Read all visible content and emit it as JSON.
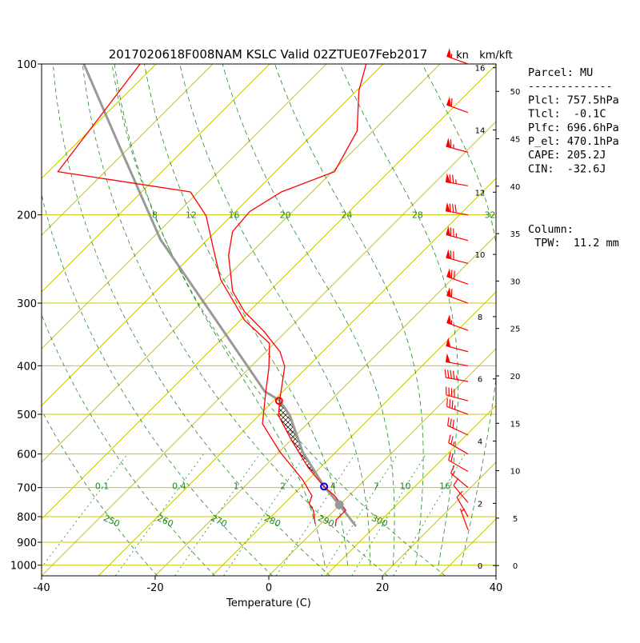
{
  "chart_data": {
    "type": "skewt",
    "title": "2017020618F008NAM KSLC Valid 02ZTUE07Feb2017",
    "xlabel": "Temperature (C)",
    "xlim": [
      -40,
      40
    ],
    "xticks": [
      -40,
      -20,
      0,
      20,
      40
    ],
    "ylim": [
      1050,
      100
    ],
    "yticks": [
      100,
      200,
      300,
      400,
      500,
      600,
      700,
      800,
      900,
      1000
    ],
    "log_y": true,
    "skew": 45,
    "isotherms": [
      -110,
      -100,
      -90,
      -80,
      -70,
      -60,
      -50,
      -40,
      -30,
      -20,
      -10,
      0,
      10,
      20,
      30,
      40
    ],
    "dry_adiabats": [
      250,
      260,
      270,
      280,
      290,
      300
    ],
    "mixing_ratios": [
      0.1,
      0.4,
      1,
      2,
      4,
      7,
      10,
      16
    ],
    "moist_adiabats": [
      8,
      12,
      16,
      20,
      24,
      28,
      32
    ],
    "temperature": {
      "color": "#ff0000",
      "pressure": [
        836,
        812,
        777,
        727,
        695,
        639,
        562,
        503,
        469,
        434,
        401,
        375,
        342,
        312,
        284,
        241,
        216,
        197,
        180,
        164,
        136,
        113,
        100
      ],
      "values": [
        3.0,
        2.0,
        2.0,
        -2.5,
        -6.2,
        -12.1,
        -20.0,
        -26.5,
        -29.0,
        -31.5,
        -34.1,
        -37.5,
        -43.8,
        -50.8,
        -56.5,
        -63.5,
        -67.0,
        -67.5,
        -65.4,
        -59.6,
        -62.8,
        -69.6,
        -73.0
      ]
    },
    "dewpoint": {
      "color": "#ff0000",
      "pressure": [
        827,
        777,
        754,
        727,
        675,
        594,
        522,
        450,
        404,
        361,
        324,
        269,
        232,
        201,
        180,
        164,
        100
      ],
      "values": [
        -1.0,
        -3.7,
        -5.6,
        -6.5,
        -11.0,
        -19.9,
        -27.9,
        -33.0,
        -36.6,
        -40.8,
        -49.4,
        -60.7,
        -67.7,
        -74.4,
        -81.4,
        -108.3,
        -112.8
      ]
    },
    "parcel": {
      "color": "#999999",
      "pressure": [
        836,
        757.5,
        696.6,
        594,
        503,
        469,
        450,
        324,
        224,
        149,
        100
      ],
      "values": [
        6.6,
        -0.1,
        -6.0,
        -15.9,
        -24.5,
        -29.0,
        -33.2,
        -54.4,
        -78.3,
        -100.8,
        -122.7
      ]
    },
    "markers": [
      {
        "pressure": 757.5,
        "temperature": -0.1,
        "color": "#999999"
      },
      {
        "pressure": 696.6,
        "temperature": -6.0,
        "color": "#0000ff"
      },
      {
        "pressure": 470.1,
        "temperature": -29.0,
        "color": "#ff0000"
      }
    ],
    "wind": {
      "color": "#ff0000",
      "pressure": [
        100,
        125,
        150,
        175,
        200,
        225,
        250,
        275,
        300,
        340,
        375,
        400,
        430,
        470,
        500,
        550,
        600,
        650,
        700,
        750,
        800,
        850
      ],
      "speed": [
        55,
        60,
        65,
        75,
        80,
        75,
        70,
        70,
        60,
        55,
        50,
        50,
        45,
        40,
        35,
        30,
        25,
        20,
        15,
        10,
        10,
        5
      ],
      "direction": [
        290,
        290,
        285,
        280,
        280,
        285,
        285,
        290,
        290,
        290,
        285,
        280,
        280,
        285,
        290,
        295,
        300,
        300,
        310,
        320,
        330,
        340
      ]
    },
    "wind_unit": "kn",
    "height_unit": "km/kft",
    "height_lim_km": [
      -0.33,
      16.12
    ],
    "height_km_ticks": [
      0,
      2,
      4,
      6,
      8,
      10,
      12,
      14,
      16
    ],
    "height_kft_ticks": [
      0,
      5,
      10,
      15,
      20,
      25,
      30,
      35,
      40,
      45,
      50
    ],
    "parcel_info": [
      "Parcel: MU",
      "-------------",
      "Plcl: 757.5hPa",
      "Tlcl:  -0.1C",
      "Plfc: 696.6hPa",
      "P_el: 470.1hPa",
      "CAPE: 205.2J",
      "CIN:  -32.6J"
    ],
    "column_info": [
      "Column:",
      " TPW:  11.2 mm"
    ]
  }
}
